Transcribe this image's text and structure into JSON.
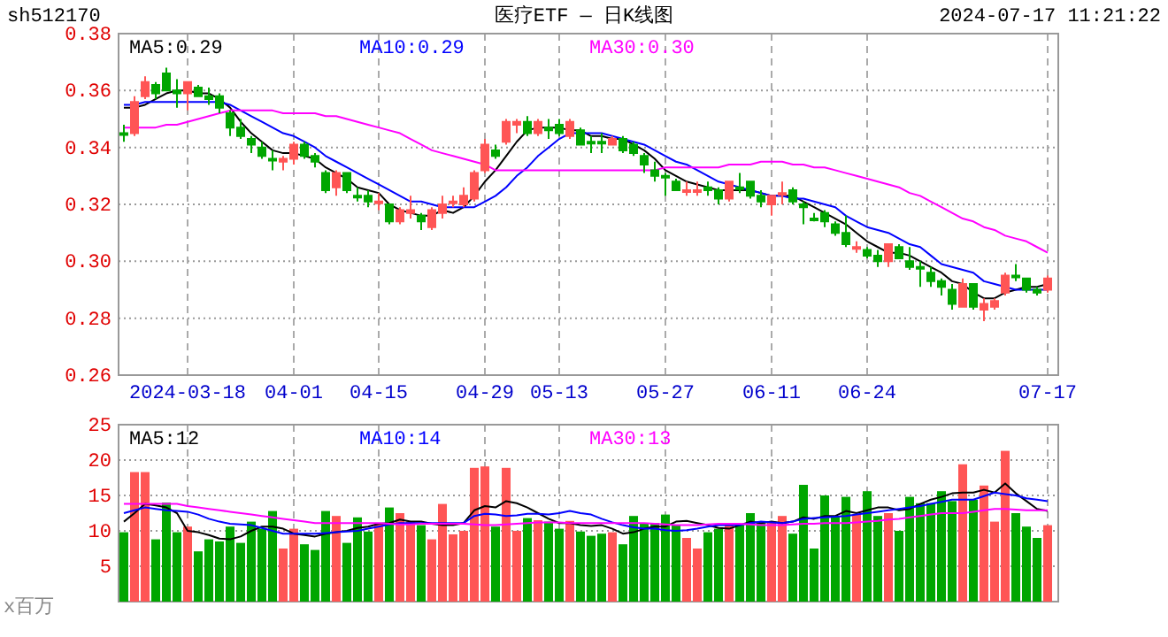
{
  "chart_data": [
    {
      "type": "candlestick",
      "title": "医疗ETF — 日K线图",
      "annotations": [
        "sh512170",
        "2024-07-17 11:21:22"
      ],
      "categories": [
        null,
        null,
        null,
        null,
        null,
        null,
        "2024-03-18",
        null,
        null,
        null,
        null,
        null,
        null,
        null,
        null,
        null,
        "04-01",
        null,
        null,
        null,
        null,
        null,
        null,
        null,
        "04-15",
        null,
        null,
        null,
        null,
        null,
        null,
        null,
        null,
        null,
        "04-29",
        null,
        null,
        null,
        null,
        null,
        null,
        "05-13",
        null,
        null,
        null,
        null,
        null,
        null,
        null,
        null,
        null,
        "05-27",
        null,
        null,
        null,
        null,
        null,
        null,
        null,
        null,
        null,
        "06-11",
        null,
        null,
        null,
        null,
        null,
        null,
        null,
        null,
        "06-24",
        null,
        null,
        null,
        null,
        null,
        null,
        null,
        null,
        null,
        null,
        null,
        null,
        null,
        null,
        null,
        null,
        "07-17"
      ],
      "ohlc": [
        [
          0.345,
          0.348,
          0.342,
          0.345
        ],
        [
          0.345,
          0.358,
          0.344,
          0.356
        ],
        [
          0.358,
          0.365,
          0.357,
          0.363
        ],
        [
          0.362,
          0.363,
          0.357,
          0.359
        ],
        [
          0.366,
          0.368,
          0.36,
          0.36
        ],
        [
          0.36,
          0.364,
          0.354,
          0.359
        ],
        [
          0.359,
          0.363,
          0.353,
          0.363
        ],
        [
          0.361,
          0.362,
          0.358,
          0.358
        ],
        [
          0.358,
          0.361,
          0.355,
          0.357
        ],
        [
          0.358,
          0.359,
          0.352,
          0.354
        ],
        [
          0.352,
          0.353,
          0.344,
          0.347
        ],
        [
          0.347,
          0.35,
          0.343,
          0.344
        ],
        [
          0.343,
          0.344,
          0.338,
          0.341
        ],
        [
          0.34,
          0.342,
          0.336,
          0.337
        ],
        [
          0.336,
          0.339,
          0.332,
          0.336
        ],
        [
          0.335,
          0.337,
          0.332,
          0.336
        ],
        [
          0.336,
          0.342,
          0.334,
          0.341
        ],
        [
          0.341,
          0.342,
          0.336,
          0.337
        ],
        [
          0.337,
          0.338,
          0.333,
          0.335
        ],
        [
          0.331,
          0.332,
          0.324,
          0.325
        ],
        [
          0.326,
          0.332,
          0.323,
          0.331
        ],
        [
          0.331,
          0.331,
          0.324,
          0.325
        ],
        [
          0.323,
          0.326,
          0.321,
          0.323
        ],
        [
          0.323,
          0.325,
          0.319,
          0.321
        ],
        [
          0.321,
          0.324,
          0.318,
          0.321
        ],
        [
          0.32,
          0.32,
          0.313,
          0.314
        ],
        [
          0.314,
          0.319,
          0.313,
          0.318
        ],
        [
          0.317,
          0.323,
          0.315,
          0.318
        ],
        [
          0.316,
          0.317,
          0.311,
          0.314
        ],
        [
          0.312,
          0.319,
          0.311,
          0.318
        ],
        [
          0.317,
          0.323,
          0.315,
          0.32
        ],
        [
          0.321,
          0.323,
          0.319,
          0.321
        ],
        [
          0.32,
          0.326,
          0.319,
          0.323
        ],
        [
          0.322,
          0.332,
          0.321,
          0.331
        ],
        [
          0.332,
          0.343,
          0.331,
          0.341
        ],
        [
          0.339,
          0.341,
          0.336,
          0.337
        ],
        [
          0.342,
          0.35,
          0.341,
          0.349
        ],
        [
          0.348,
          0.35,
          0.345,
          0.349
        ],
        [
          0.349,
          0.351,
          0.344,
          0.345
        ],
        [
          0.345,
          0.35,
          0.344,
          0.349
        ],
        [
          0.347,
          0.35,
          0.343,
          0.346
        ],
        [
          0.348,
          0.35,
          0.344,
          0.345
        ],
        [
          0.344,
          0.35,
          0.343,
          0.349
        ],
        [
          0.346,
          0.347,
          0.341,
          0.341
        ],
        [
          0.342,
          0.344,
          0.338,
          0.342
        ],
        [
          0.342,
          0.345,
          0.338,
          0.342
        ],
        [
          0.341,
          0.344,
          0.341,
          0.343
        ],
        [
          0.343,
          0.344,
          0.338,
          0.339
        ],
        [
          0.341,
          0.342,
          0.337,
          0.338
        ],
        [
          0.337,
          0.338,
          0.331,
          0.334
        ],
        [
          0.332,
          0.335,
          0.328,
          0.33
        ],
        [
          0.33,
          0.331,
          0.323,
          0.33
        ],
        [
          0.328,
          0.329,
          0.325,
          0.325
        ],
        [
          0.325,
          0.328,
          0.323,
          0.325
        ],
        [
          0.325,
          0.328,
          0.323,
          0.325
        ],
        [
          0.326,
          0.328,
          0.323,
          0.325
        ],
        [
          0.325,
          0.326,
          0.32,
          0.322
        ],
        [
          0.322,
          0.328,
          0.321,
          0.328
        ],
        [
          0.326,
          0.331,
          0.324,
          0.326
        ],
        [
          0.328,
          0.328,
          0.322,
          0.323
        ],
        [
          0.323,
          0.325,
          0.319,
          0.321
        ],
        [
          0.32,
          0.323,
          0.316,
          0.323
        ],
        [
          0.324,
          0.328,
          0.32,
          0.324
        ],
        [
          0.325,
          0.326,
          0.32,
          0.321
        ],
        [
          0.32,
          0.321,
          0.313,
          0.319
        ],
        [
          0.315,
          0.317,
          0.314,
          0.315
        ],
        [
          0.317,
          0.318,
          0.312,
          0.314
        ],
        [
          0.313,
          0.314,
          0.309,
          0.31
        ],
        [
          0.31,
          0.316,
          0.305,
          0.306
        ],
        [
          0.305,
          0.307,
          0.303,
          0.305
        ],
        [
          0.304,
          0.305,
          0.301,
          0.302
        ],
        [
          0.302,
          0.304,
          0.298,
          0.3
        ],
        [
          0.3,
          0.306,
          0.298,
          0.306
        ],
        [
          0.305,
          0.306,
          0.301,
          0.301
        ],
        [
          0.3,
          0.305,
          0.297,
          0.298
        ],
        [
          0.298,
          0.3,
          0.291,
          0.298
        ],
        [
          0.296,
          0.298,
          0.291,
          0.293
        ],
        [
          0.293,
          0.294,
          0.288,
          0.291
        ],
        [
          0.29,
          0.292,
          0.283,
          0.285
        ],
        [
          0.284,
          0.294,
          0.284,
          0.292
        ],
        [
          0.292,
          0.292,
          0.283,
          0.284
        ],
        [
          0.283,
          0.287,
          0.279,
          0.285
        ],
        [
          0.284,
          0.287,
          0.283,
          0.286
        ],
        [
          0.289,
          0.296,
          0.288,
          0.295
        ],
        [
          0.295,
          0.299,
          0.293,
          0.295
        ],
        [
          0.294,
          0.294,
          0.289,
          0.29
        ],
        [
          0.29,
          0.291,
          0.288,
          0.289
        ],
        [
          0.29,
          0.295,
          0.289,
          0.294
        ]
      ],
      "colors": [
        "#00a600",
        "#ff5555",
        "#ff5555",
        "#00a600",
        "#00a600",
        "#00a600",
        "#ff5555",
        "#00a600",
        "#00a600",
        "#00a600",
        "#00a600",
        "#00a600",
        "#00a600",
        "#00a600",
        "#00a600",
        "#ff5555",
        "#ff5555",
        "#00a600",
        "#00a600",
        "#00a600",
        "#ff5555",
        "#00a600",
        "#00a600",
        "#00a600",
        "#ff5555",
        "#00a600",
        "#ff5555",
        "#ff5555",
        "#00a600",
        "#ff5555",
        "#ff5555",
        "#ff5555",
        "#ff5555",
        "#ff5555",
        "#ff5555",
        "#00a600",
        "#ff5555",
        "#ff5555",
        "#00a600",
        "#ff5555",
        "#00a600",
        "#00a600",
        "#ff5555",
        "#00a600",
        "#00a600",
        "#00a600",
        "#ff5555",
        "#00a600",
        "#00a600",
        "#00a600",
        "#00a600",
        "#00a600",
        "#00a600",
        "#ff5555",
        "#ff5555",
        "#00a600",
        "#00a600",
        "#ff5555",
        "#00a600",
        "#00a600",
        "#00a600",
        "#ff5555",
        "#ff5555",
        "#00a600",
        "#00a600",
        "#00a600",
        "#00a600",
        "#00a600",
        "#00a600",
        "#ff5555",
        "#00a600",
        "#00a600",
        "#ff5555",
        "#00a600",
        "#00a600",
        "#00a600",
        "#00a600",
        "#00a600",
        "#00a600",
        "#ff5555",
        "#00a600",
        "#ff5555",
        "#ff5555",
        "#ff5555",
        "#00a600",
        "#00a600",
        "#00a600",
        "#ff5555"
      ],
      "series": [
        {
          "type": "line",
          "name": "MA5:0.29",
          "color": "#000000",
          "values": [
            0.354,
            0.354,
            0.355,
            0.357,
            0.359,
            0.36,
            0.36,
            0.359,
            0.359,
            0.357,
            0.354,
            0.349,
            0.345,
            0.342,
            0.339,
            0.338,
            0.338,
            0.337,
            0.336,
            0.333,
            0.331,
            0.329,
            0.326,
            0.325,
            0.324,
            0.32,
            0.318,
            0.317,
            0.316,
            0.316,
            0.318,
            0.317,
            0.319,
            0.323,
            0.328,
            0.332,
            0.337,
            0.342,
            0.346,
            0.347,
            0.347,
            0.347,
            0.346,
            0.346,
            0.344,
            0.344,
            0.343,
            0.343,
            0.341,
            0.339,
            0.336,
            0.332,
            0.33,
            0.328,
            0.327,
            0.326,
            0.325,
            0.325,
            0.325,
            0.325,
            0.324,
            0.323,
            0.323,
            0.323,
            0.321,
            0.319,
            0.317,
            0.315,
            0.313,
            0.31,
            0.307,
            0.305,
            0.303,
            0.303,
            0.302,
            0.3,
            0.298,
            0.296,
            0.293,
            0.292,
            0.289,
            0.287,
            0.287,
            0.289,
            0.29,
            0.291,
            0.291,
            0.292
          ]
        },
        {
          "type": "line",
          "name": "MA10:0.29",
          "color": "#0000ff",
          "values": [
            0.355,
            0.355,
            0.356,
            0.356,
            0.356,
            0.356,
            0.356,
            0.356,
            0.356,
            0.356,
            0.355,
            0.353,
            0.351,
            0.349,
            0.347,
            0.345,
            0.344,
            0.342,
            0.34,
            0.337,
            0.335,
            0.333,
            0.331,
            0.329,
            0.327,
            0.325,
            0.323,
            0.321,
            0.321,
            0.32,
            0.319,
            0.319,
            0.319,
            0.319,
            0.321,
            0.323,
            0.326,
            0.33,
            0.333,
            0.337,
            0.34,
            0.343,
            0.345,
            0.345,
            0.345,
            0.345,
            0.344,
            0.343,
            0.342,
            0.341,
            0.339,
            0.337,
            0.335,
            0.334,
            0.332,
            0.33,
            0.328,
            0.327,
            0.326,
            0.325,
            0.324,
            0.323,
            0.323,
            0.322,
            0.322,
            0.321,
            0.32,
            0.319,
            0.316,
            0.314,
            0.312,
            0.311,
            0.31,
            0.308,
            0.306,
            0.305,
            0.302,
            0.299,
            0.298,
            0.297,
            0.296,
            0.293,
            0.292,
            0.291,
            0.29,
            0.29,
            0.29,
            0.29
          ]
        },
        {
          "type": "line",
          "name": "MA30:0.30",
          "color": "#ff00ff",
          "values": [
            0.347,
            0.347,
            0.347,
            0.347,
            0.348,
            0.348,
            0.349,
            0.35,
            0.351,
            0.352,
            0.353,
            0.353,
            0.353,
            0.353,
            0.353,
            0.352,
            0.352,
            0.352,
            0.352,
            0.351,
            0.351,
            0.35,
            0.349,
            0.348,
            0.347,
            0.346,
            0.345,
            0.343,
            0.341,
            0.339,
            0.338,
            0.337,
            0.336,
            0.335,
            0.334,
            0.332,
            0.332,
            0.332,
            0.332,
            0.332,
            0.332,
            0.332,
            0.332,
            0.332,
            0.332,
            0.332,
            0.332,
            0.332,
            0.332,
            0.332,
            0.332,
            0.333,
            0.333,
            0.333,
            0.333,
            0.333,
            0.333,
            0.334,
            0.334,
            0.334,
            0.335,
            0.335,
            0.335,
            0.334,
            0.334,
            0.333,
            0.333,
            0.332,
            0.331,
            0.33,
            0.329,
            0.328,
            0.327,
            0.326,
            0.324,
            0.323,
            0.321,
            0.319,
            0.317,
            0.315,
            0.314,
            0.312,
            0.311,
            0.309,
            0.308,
            0.307,
            0.305,
            0.303
          ]
        }
      ],
      "ylim": [
        0.26,
        0.38
      ],
      "yticks": [
        {
          "value": 0.26,
          "label": "0.26"
        },
        {
          "value": 0.28,
          "label": "0.28"
        },
        {
          "value": 0.3,
          "label": "0.30"
        },
        {
          "value": 0.32,
          "label": "0.32"
        },
        {
          "value": 0.34,
          "label": "0.34"
        },
        {
          "value": 0.36,
          "label": "0.36"
        },
        {
          "value": 0.38,
          "label": "0.38"
        }
      ],
      "grid": true,
      "legend": "top left"
    },
    {
      "type": "bar",
      "ylabel": "x百万",
      "categories": [
        null,
        null,
        null,
        null,
        null,
        null,
        null,
        null,
        null,
        null,
        null,
        null,
        null,
        null,
        null,
        null,
        null,
        null,
        null,
        null,
        null,
        null,
        null,
        null,
        null,
        null,
        null,
        null,
        null,
        null,
        null,
        null,
        null,
        null,
        null,
        null,
        null,
        null,
        null,
        null,
        null,
        null,
        null,
        null,
        null,
        null,
        null,
        null,
        null,
        null,
        null,
        null,
        null,
        null,
        null,
        null,
        null,
        null,
        null,
        null,
        null,
        null,
        null,
        null,
        null,
        null,
        null,
        null,
        null,
        null,
        null,
        null,
        null,
        null,
        null,
        null,
        null,
        null,
        null,
        null,
        null,
        null,
        null,
        null,
        null,
        null,
        null,
        null
      ],
      "series": [
        {
          "type": "bar",
          "colors": [
            "#00a600",
            "#ff5555",
            "#ff5555",
            "#00a600",
            "#00a600",
            "#00a600",
            "#ff5555",
            "#00a600",
            "#00a600",
            "#00a600",
            "#00a600",
            "#00a600",
            "#00a600",
            "#00a600",
            "#00a600",
            "#ff5555",
            "#ff5555",
            "#00a600",
            "#00a600",
            "#00a600",
            "#ff5555",
            "#00a600",
            "#00a600",
            "#00a600",
            "#ff5555",
            "#00a600",
            "#ff5555",
            "#ff5555",
            "#00a600",
            "#ff5555",
            "#ff5555",
            "#ff5555",
            "#ff5555",
            "#ff5555",
            "#ff5555",
            "#00a600",
            "#ff5555",
            "#ff5555",
            "#00a600",
            "#ff5555",
            "#00a600",
            "#00a600",
            "#ff5555",
            "#00a600",
            "#00a600",
            "#00a600",
            "#ff5555",
            "#00a600",
            "#00a600",
            "#00a600",
            "#00a600",
            "#00a600",
            "#00a600",
            "#ff5555",
            "#ff5555",
            "#00a600",
            "#00a600",
            "#ff5555",
            "#00a600",
            "#00a600",
            "#00a600",
            "#ff5555",
            "#ff5555",
            "#00a600",
            "#00a600",
            "#00a600",
            "#00a600",
            "#00a600",
            "#00a600",
            "#ff5555",
            "#00a600",
            "#00a600",
            "#ff5555",
            "#00a600",
            "#00a600",
            "#00a600",
            "#00a600",
            "#00a600",
            "#00a600",
            "#ff5555",
            "#00a600",
            "#ff5555",
            "#ff5555",
            "#ff5555",
            "#00a600",
            "#00a600",
            "#00a600",
            "#ff5555"
          ],
          "values": [
            9.8,
            18.3,
            18.3,
            8.8,
            14.0,
            9.8,
            10.6,
            7.1,
            8.8,
            8.5,
            10.6,
            8.3,
            11.3,
            10.3,
            12.8,
            7.5,
            10.3,
            8.1,
            7.3,
            12.8,
            12.1,
            8.3,
            11.9,
            9.9,
            11.0,
            13.3,
            12.5,
            11.3,
            10.8,
            8.8,
            13.8,
            9.5,
            10.0,
            18.9,
            19.1,
            10.6,
            18.9,
            10.0,
            11.8,
            11.5,
            11.3,
            10.3,
            11.4,
            9.9,
            9.3,
            9.6,
            9.8,
            8.1,
            12.1,
            11.1,
            11.1,
            12.3,
            10.8,
            9.0,
            7.5,
            9.8,
            10.3,
            11.1,
            10.8,
            12.5,
            11.1,
            11.3,
            12.1,
            9.6,
            16.5,
            7.5,
            15.0,
            12.1,
            14.8,
            12.3,
            15.6,
            12.1,
            12.5,
            10.0,
            14.8,
            13.9,
            13.9,
            15.6,
            14.2,
            19.4,
            14.4,
            16.4,
            11.3,
            21.3,
            12.5,
            10.6,
            9.0,
            10.8
          ]
        },
        {
          "type": "line",
          "name": "MA5:12",
          "color": "#000000",
          "values": [
            11.3,
            12.5,
            13.8,
            13.6,
            13.3,
            12.5,
            10.0,
            9.8,
            9.4,
            8.9,
            8.8,
            9.2,
            10.0,
            10.6,
            10.6,
            10.3,
            9.6,
            9.4,
            9.2,
            9.6,
            9.8,
            10.0,
            10.4,
            10.6,
            11.0,
            11.1,
            11.6,
            11.3,
            11.3,
            11.0,
            10.8,
            10.8,
            11.1,
            12.9,
            13.5,
            13.3,
            14.2,
            13.9,
            13.3,
            12.5,
            11.7,
            11.1,
            11.1,
            10.8,
            10.7,
            10.8,
            10.3,
            9.6,
            9.8,
            10.3,
            10.6,
            10.6,
            11.3,
            11.4,
            11.1,
            10.8,
            10.4,
            10.3,
            10.8,
            11.3,
            11.1,
            11.3,
            11.1,
            11.3,
            11.9,
            11.7,
            12.1,
            12.1,
            12.8,
            12.5,
            12.9,
            13.3,
            13.3,
            12.9,
            13.1,
            13.8,
            14.4,
            14.8,
            15.3,
            15.4,
            15.4,
            15.8,
            15.4,
            16.7,
            15.3,
            14.2,
            13.1,
            12.8
          ]
        },
        {
          "type": "line",
          "name": "MA10:14",
          "color": "#0000ff",
          "values": [
            12.5,
            12.9,
            13.3,
            13.1,
            12.9,
            12.8,
            12.7,
            12.3,
            11.7,
            11.3,
            11.0,
            10.9,
            10.8,
            10.4,
            10.0,
            9.6,
            9.6,
            9.6,
            9.6,
            9.7,
            9.8,
            9.9,
            10.0,
            10.3,
            10.6,
            10.9,
            11.1,
            11.1,
            11.1,
            11.1,
            11.1,
            11.1,
            11.1,
            12.1,
            12.4,
            12.3,
            12.1,
            12.2,
            12.4,
            12.4,
            12.3,
            12.5,
            12.8,
            12.5,
            12.3,
            11.7,
            11.2,
            10.8,
            10.5,
            10.3,
            10.3,
            10.1,
            10.0,
            10.1,
            10.3,
            10.6,
            10.8,
            10.8,
            10.8,
            11.1,
            11.3,
            11.2,
            11.1,
            11.3,
            11.7,
            11.8,
            11.9,
            12.0,
            12.1,
            12.3,
            12.5,
            12.7,
            12.9,
            13.1,
            13.3,
            13.5,
            13.8,
            14.1,
            14.4,
            14.4,
            14.4,
            14.9,
            15.4,
            15.2,
            15.0,
            14.6,
            14.4,
            14.2
          ]
        },
        {
          "type": "line",
          "name": "MA30:13",
          "color": "#ff00ff",
          "values": [
            13.8,
            13.8,
            13.8,
            13.8,
            13.8,
            13.8,
            13.5,
            13.3,
            13.1,
            12.9,
            12.7,
            12.5,
            12.3,
            12.1,
            11.9,
            11.7,
            11.5,
            11.3,
            11.1,
            11.1,
            11.1,
            11.1,
            11.1,
            11.1,
            11.1,
            11.0,
            10.9,
            10.9,
            11.0,
            11.0,
            11.0,
            11.0,
            11.0,
            10.9,
            10.8,
            10.8,
            10.9,
            11.0,
            11.1,
            11.2,
            11.2,
            11.2,
            11.1,
            11.1,
            11.1,
            11.1,
            11.1,
            11.1,
            11.1,
            11.1,
            11.0,
            10.9,
            10.8,
            10.8,
            10.8,
            10.9,
            11.0,
            11.0,
            11.0,
            10.9,
            10.8,
            10.8,
            10.8,
            10.9,
            11.0,
            11.0,
            11.1,
            11.1,
            11.1,
            11.2,
            11.3,
            11.4,
            11.6,
            11.7,
            11.9,
            12.1,
            12.3,
            12.5,
            12.5,
            12.5,
            12.7,
            12.9,
            13.1,
            13.1,
            13.0,
            12.9,
            12.9,
            12.9
          ]
        }
      ],
      "ylim": [
        0,
        25
      ],
      "yticks": [
        5,
        10,
        15,
        20,
        25
      ],
      "grid": true,
      "legend": "top left"
    }
  ]
}
